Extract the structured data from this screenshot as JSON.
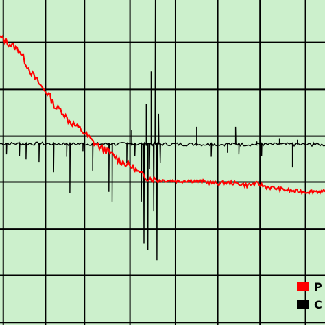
{
  "chart_data": {
    "type": "line",
    "title": "",
    "xlabel": "",
    "ylabel": "",
    "xlim": [
      0,
      100
    ],
    "ylim": [
      0,
      100
    ],
    "grid": true,
    "legend_placement": "bottom-right",
    "background_color": "#ccf0cc",
    "grid_color": "#000000",
    "x_gridlines": [
      1,
      14,
      26,
      40,
      54,
      67,
      80,
      94
    ],
    "y_gridlines": [
      0.8,
      15.3,
      29.5,
      44,
      58.1,
      72.5,
      87,
      101
    ],
    "series": [
      {
        "name": "P",
        "color": "#ff0000",
        "x": [
          0,
          3,
          6,
          8,
          10,
          13,
          15,
          17,
          19,
          21,
          23,
          25,
          27,
          29,
          31,
          33,
          35,
          37,
          39,
          41,
          43,
          45,
          47,
          49,
          52,
          55,
          58,
          61,
          64,
          67,
          70,
          73,
          76,
          79,
          82,
          85,
          88,
          91,
          94,
          97,
          100
        ],
        "values": [
          88.5,
          86.5,
          84.5,
          80.5,
          77,
          73,
          71,
          67,
          66,
          63,
          61.5,
          60,
          58,
          56,
          54.5,
          53.5,
          52,
          50.5,
          49.5,
          48.5,
          46.5,
          45.5,
          45,
          44.5,
          44.5,
          44.2,
          44.5,
          44.2,
          44,
          43.5,
          43.8,
          43.5,
          43,
          43.5,
          42.5,
          42,
          41.5,
          41.2,
          41,
          41.2,
          41
        ]
      },
      {
        "name": "C",
        "color": "#000000",
        "baseline": 55.8,
        "x": [
          0,
          100
        ],
        "values": [
          55.8,
          55.5
        ],
        "spikes": [
          {
            "x": 2,
            "y": 52.5
          },
          {
            "x": 6,
            "y": 52
          },
          {
            "x": 8,
            "y": 51
          },
          {
            "x": 12,
            "y": 50.2
          },
          {
            "x": 16.5,
            "y": 47
          },
          {
            "x": 20.5,
            "y": 51.8
          },
          {
            "x": 21.5,
            "y": 40.5
          },
          {
            "x": 25.5,
            "y": 53.5
          },
          {
            "x": 28.5,
            "y": 47.5
          },
          {
            "x": 33.5,
            "y": 41
          },
          {
            "x": 34.5,
            "y": 38
          },
          {
            "x": 39,
            "y": 50
          },
          {
            "x": 40.5,
            "y": 60
          },
          {
            "x": 41.5,
            "y": 52
          },
          {
            "x": 43.5,
            "y": 38
          },
          {
            "x": 44.3,
            "y": 25
          },
          {
            "x": 45,
            "y": 68
          },
          {
            "x": 45.5,
            "y": 23
          },
          {
            "x": 46,
            "y": 48
          },
          {
            "x": 46.5,
            "y": 78
          },
          {
            "x": 47.3,
            "y": 35
          },
          {
            "x": 47.8,
            "y": 100
          },
          {
            "x": 48.3,
            "y": 20
          },
          {
            "x": 48.8,
            "y": 65
          },
          {
            "x": 49.3,
            "y": 50
          },
          {
            "x": 54,
            "y": 51
          },
          {
            "x": 60.5,
            "y": 61
          },
          {
            "x": 65,
            "y": 51.8
          },
          {
            "x": 70,
            "y": 53
          },
          {
            "x": 72.5,
            "y": 61
          },
          {
            "x": 73.5,
            "y": 52.5
          },
          {
            "x": 79,
            "y": 56.5
          },
          {
            "x": 80.5,
            "y": 52
          },
          {
            "x": 86,
            "y": 57.5
          },
          {
            "x": 90,
            "y": 48.5
          },
          {
            "x": 91.5,
            "y": 57
          },
          {
            "x": 96.5,
            "y": 56
          }
        ]
      }
    ]
  }
}
